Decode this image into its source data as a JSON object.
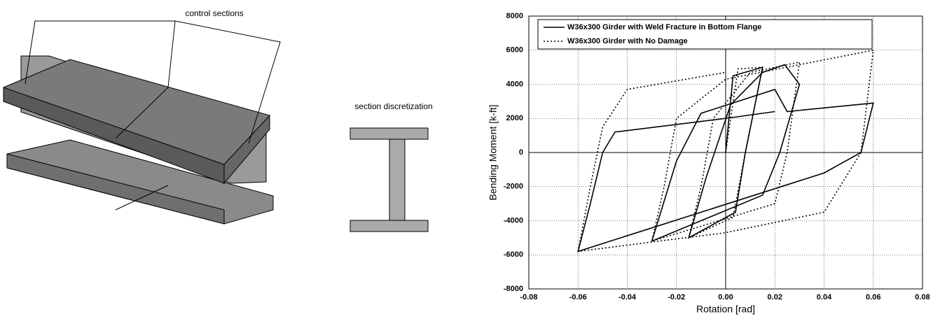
{
  "diagram": {
    "beam_label": "control sections",
    "section_label": "section discretization"
  },
  "chart_data": {
    "type": "line",
    "x_label": "Rotation [rad]",
    "y_label": "Bending Moment [k-ft]",
    "xlim": [
      -0.08,
      0.08
    ],
    "ylim": [
      -8000,
      8000
    ],
    "xticks": [
      -0.08,
      -0.06,
      -0.04,
      -0.02,
      {
        "value": 0,
        "label": "0.00"
      },
      0.02,
      0.04,
      0.06,
      0.08
    ],
    "yticks": [
      -8000,
      -6000,
      -4000,
      -2000,
      0,
      2000,
      4000,
      6000,
      8000
    ],
    "grid": true,
    "legend": "upper-left",
    "series": [
      {
        "name": "W36x300 Girder with Weld Fracture in Bottom Flange",
        "color": "#000000",
        "dash": "solid",
        "x": [
          0,
          0.003,
          0.015,
          0.008,
          0.004,
          -0.015,
          -0.008,
          0.002,
          0.015,
          0.024,
          0.03,
          0.022,
          0.015,
          -0.03,
          -0.02,
          -0.01,
          0.02,
          0.025,
          0.06,
          0.055,
          0.04,
          -0.06,
          -0.055,
          -0.05,
          -0.045,
          0.0,
          0.02
        ],
        "values": [
          0,
          4500,
          5000,
          0,
          -3500,
          -5000,
          -1500,
          2800,
          4700,
          5150,
          4000,
          0,
          -2500,
          -5200,
          -500,
          2300,
          3700,
          2400,
          2900,
          0,
          -1200,
          -5800,
          -3000,
          0,
          1200,
          2000,
          2400
        ]
      },
      {
        "name": "W36x300 Girder with No Damage",
        "color": "#000000",
        "dash": "dotted",
        "x": [
          0,
          0.005,
          0.015,
          0.008,
          0.003,
          -0.015,
          -0.01,
          -0.005,
          0.01,
          0.03,
          0.025,
          0.02,
          -0.03,
          -0.025,
          -0.02,
          0,
          0.06,
          0.055,
          0.04,
          0.0,
          -0.06,
          -0.055,
          -0.05,
          -0.04,
          0
        ],
        "values": [
          0,
          4900,
          5000,
          0,
          -3800,
          -5000,
          -2000,
          2000,
          4700,
          5300,
          0,
          -3000,
          -5200,
          -2000,
          2000,
          4300,
          6000,
          0,
          -3500,
          -4700,
          -5800,
          -2000,
          1500,
          3700,
          4700
        ]
      }
    ]
  }
}
